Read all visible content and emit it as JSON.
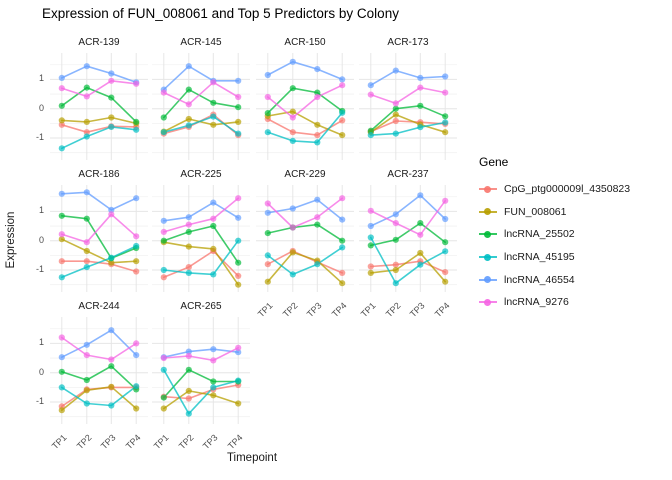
{
  "title": "Expression of FUN_008061 and Top 5 Predictors by Colony",
  "axes": {
    "x_title": "Timepoint",
    "y_title": "Expression",
    "x_ticks": [
      "TP1",
      "TP2",
      "TP3",
      "TP4"
    ],
    "y_ticks": [
      "1",
      "0",
      "-1"
    ]
  },
  "legend": {
    "title": "Gene",
    "items": [
      {
        "label": "CpG_ptg000009l_4350823",
        "color": "#F8766D"
      },
      {
        "label": "FUN_008061",
        "color": "#B79F00"
      },
      {
        "label": "lncRNA_25502",
        "color": "#00BA38"
      },
      {
        "label": "lncRNA_45195",
        "color": "#00BFC4"
      },
      {
        "label": "lncRNA_46554",
        "color": "#619CFF"
      },
      {
        "label": "lncRNA_9276",
        "color": "#F564E3"
      }
    ]
  },
  "chart_data": {
    "type": "line",
    "facet_by": "Colony",
    "x": [
      "TP1",
      "TP2",
      "TP3",
      "TP4"
    ],
    "ylim": [
      -1.75,
      1.9
    ],
    "y_major_gridlines": [
      1,
      0,
      -1
    ],
    "y_minor_gridlines": [
      1.5,
      0.5,
      -0.5,
      -1.5
    ],
    "genes": [
      {
        "name": "CpG_ptg000009l_4350823",
        "color": "#F8766D"
      },
      {
        "name": "FUN_008061",
        "color": "#B79F00"
      },
      {
        "name": "lncRNA_25502",
        "color": "#00BA38"
      },
      {
        "name": "lncRNA_45195",
        "color": "#00BFC4"
      },
      {
        "name": "lncRNA_46554",
        "color": "#619CFF"
      },
      {
        "name": "lncRNA_9276",
        "color": "#F564E3"
      }
    ],
    "facets": [
      {
        "name": "ACR-139",
        "series": [
          {
            "gene": "CpG_ptg000009l_4350823",
            "values": [
              -0.55,
              -0.8,
              -0.6,
              -0.62
            ]
          },
          {
            "gene": "FUN_008061",
            "values": [
              -0.4,
              -0.45,
              -0.3,
              -0.5
            ]
          },
          {
            "gene": "lncRNA_25502",
            "values": [
              0.1,
              0.72,
              0.38,
              -0.45
            ]
          },
          {
            "gene": "lncRNA_45195",
            "values": [
              -1.35,
              -0.95,
              -0.62,
              -0.72
            ]
          },
          {
            "gene": "lncRNA_46554",
            "values": [
              1.05,
              1.45,
              1.2,
              0.9
            ]
          },
          {
            "gene": "lncRNA_9276",
            "values": [
              0.7,
              0.42,
              0.95,
              0.85
            ]
          }
        ]
      },
      {
        "name": "ACR-145",
        "series": [
          {
            "gene": "CpG_ptg000009l_4350823",
            "values": [
              -0.85,
              -0.62,
              -0.2,
              -0.9
            ]
          },
          {
            "gene": "FUN_008061",
            "values": [
              -0.78,
              -0.35,
              -0.55,
              -0.45
            ]
          },
          {
            "gene": "lncRNA_25502",
            "values": [
              -0.3,
              0.65,
              0.2,
              0.05
            ]
          },
          {
            "gene": "lncRNA_45195",
            "values": [
              -0.8,
              -0.57,
              -0.27,
              -0.85
            ]
          },
          {
            "gene": "lncRNA_46554",
            "values": [
              0.65,
              1.45,
              0.95,
              0.95
            ]
          },
          {
            "gene": "lncRNA_9276",
            "values": [
              0.55,
              0.15,
              0.9,
              0.4
            ]
          }
        ]
      },
      {
        "name": "ACR-150",
        "series": [
          {
            "gene": "CpG_ptg000009l_4350823",
            "values": [
              -0.35,
              -0.8,
              -0.9,
              -0.4
            ]
          },
          {
            "gene": "FUN_008061",
            "values": [
              -0.25,
              -0.1,
              -0.55,
              -0.9
            ]
          },
          {
            "gene": "lncRNA_25502",
            "values": [
              -0.15,
              0.7,
              0.55,
              -0.08
            ]
          },
          {
            "gene": "lncRNA_45195",
            "values": [
              -0.8,
              -1.1,
              -1.15,
              -0.14
            ]
          },
          {
            "gene": "lncRNA_46554",
            "values": [
              1.15,
              1.6,
              1.35,
              1.0
            ]
          },
          {
            "gene": "lncRNA_9276",
            "values": [
              0.4,
              -0.3,
              0.4,
              0.8
            ]
          }
        ]
      },
      {
        "name": "ACR-173",
        "series": [
          {
            "gene": "CpG_ptg000009l_4350823",
            "values": [
              -0.78,
              -0.42,
              -0.46,
              -0.52
            ]
          },
          {
            "gene": "FUN_008061",
            "values": [
              -0.8,
              -0.2,
              -0.54,
              -0.8
            ]
          },
          {
            "gene": "lncRNA_25502",
            "values": [
              -0.75,
              0.0,
              0.1,
              -0.26
            ]
          },
          {
            "gene": "lncRNA_45195",
            "values": [
              -0.9,
              -0.85,
              -0.63,
              -0.47
            ]
          },
          {
            "gene": "lncRNA_46554",
            "values": [
              0.8,
              1.3,
              1.05,
              1.1
            ]
          },
          {
            "gene": "lncRNA_9276",
            "values": [
              0.48,
              0.18,
              0.72,
              0.55
            ]
          }
        ]
      },
      {
        "name": "ACR-186",
        "series": [
          {
            "gene": "CpG_ptg000009l_4350823",
            "values": [
              -0.7,
              -0.7,
              -0.8,
              -1.05
            ]
          },
          {
            "gene": "FUN_008061",
            "values": [
              0.05,
              -0.35,
              -0.75,
              -0.7
            ]
          },
          {
            "gene": "lncRNA_25502",
            "values": [
              0.85,
              0.75,
              -0.6,
              -0.25
            ]
          },
          {
            "gene": "lncRNA_45195",
            "values": [
              -1.25,
              -0.9,
              -0.58,
              -0.18
            ]
          },
          {
            "gene": "lncRNA_46554",
            "values": [
              1.6,
              1.65,
              1.05,
              1.45
            ]
          },
          {
            "gene": "lncRNA_9276",
            "values": [
              0.22,
              -0.05,
              0.9,
              0.15
            ]
          }
        ]
      },
      {
        "name": "ACR-225",
        "series": [
          {
            "gene": "CpG_ptg000009l_4350823",
            "values": [
              -1.25,
              -0.9,
              -0.35,
              -1.2
            ]
          },
          {
            "gene": "FUN_008061",
            "values": [
              -0.05,
              -0.2,
              -0.28,
              -1.5
            ]
          },
          {
            "gene": "lncRNA_25502",
            "values": [
              0.0,
              0.3,
              0.5,
              -0.75
            ]
          },
          {
            "gene": "lncRNA_45195",
            "values": [
              -1.0,
              -1.1,
              -1.15,
              0.0
            ]
          },
          {
            "gene": "lncRNA_46554",
            "values": [
              0.68,
              0.8,
              1.3,
              0.78
            ]
          },
          {
            "gene": "lncRNA_9276",
            "values": [
              0.3,
              0.55,
              0.75,
              1.45
            ]
          }
        ]
      },
      {
        "name": "ACR-229",
        "series": [
          {
            "gene": "CpG_ptg000009l_4350823",
            "values": [
              -0.8,
              -0.35,
              -0.73,
              -1.1
            ]
          },
          {
            "gene": "FUN_008061",
            "values": [
              -1.4,
              -0.4,
              -0.68,
              -1.45
            ]
          },
          {
            "gene": "lncRNA_25502",
            "values": [
              0.26,
              0.45,
              0.55,
              0.0
            ]
          },
          {
            "gene": "lncRNA_45195",
            "values": [
              -0.5,
              -1.15,
              -0.8,
              -0.23
            ]
          },
          {
            "gene": "lncRNA_46554",
            "values": [
              0.95,
              1.1,
              1.4,
              0.72
            ]
          },
          {
            "gene": "lncRNA_9276",
            "values": [
              1.27,
              0.45,
              0.8,
              1.45
            ]
          }
        ]
      },
      {
        "name": "ACR-237",
        "series": [
          {
            "gene": "CpG_ptg000009l_4350823",
            "values": [
              -0.88,
              -0.82,
              -0.7,
              -1.07
            ]
          },
          {
            "gene": "FUN_008061",
            "values": [
              -1.1,
              -1.0,
              -0.42,
              -1.4
            ]
          },
          {
            "gene": "lncRNA_25502",
            "values": [
              -0.16,
              0.03,
              0.6,
              -0.05
            ]
          },
          {
            "gene": "lncRNA_45195",
            "values": [
              0.11,
              -1.45,
              -0.82,
              -0.36
            ]
          },
          {
            "gene": "lncRNA_46554",
            "values": [
              0.5,
              0.9,
              1.55,
              0.74
            ]
          },
          {
            "gene": "lncRNA_9276",
            "values": [
              1.02,
              0.6,
              0.2,
              1.36
            ]
          }
        ]
      },
      {
        "name": "ACR-244",
        "series": [
          {
            "gene": "CpG_ptg000009l_4350823",
            "values": [
              -1.15,
              -0.57,
              -0.5,
              -0.5
            ]
          },
          {
            "gene": "FUN_008061",
            "values": [
              -1.28,
              -0.6,
              -0.48,
              -1.22
            ]
          },
          {
            "gene": "lncRNA_25502",
            "values": [
              0.03,
              -0.25,
              0.22,
              -0.57
            ]
          },
          {
            "gene": "lncRNA_45195",
            "values": [
              -0.5,
              -1.05,
              -1.12,
              -0.46
            ]
          },
          {
            "gene": "lncRNA_46554",
            "values": [
              0.53,
              0.95,
              1.45,
              0.6
            ]
          },
          {
            "gene": "lncRNA_9276",
            "values": [
              1.2,
              0.6,
              0.45,
              1.0
            ]
          }
        ]
      },
      {
        "name": "ACR-265",
        "series": [
          {
            "gene": "CpG_ptg000009l_4350823",
            "values": [
              -0.82,
              -0.88,
              -0.57,
              -0.42
            ]
          },
          {
            "gene": "FUN_008061",
            "values": [
              -1.22,
              -0.62,
              -0.77,
              -1.05
            ]
          },
          {
            "gene": "lncRNA_25502",
            "values": [
              -0.85,
              0.1,
              -0.3,
              -0.3
            ]
          },
          {
            "gene": "lncRNA_45195",
            "values": [
              0.1,
              -1.4,
              -0.5,
              -0.27
            ]
          },
          {
            "gene": "lncRNA_46554",
            "values": [
              0.53,
              0.72,
              0.8,
              0.7
            ]
          },
          {
            "gene": "lncRNA_9276",
            "values": [
              0.5,
              0.57,
              0.42,
              0.85
            ]
          }
        ]
      }
    ],
    "grid_major_color": "#e6e6e6",
    "grid_minor_color": "#f2f2f2"
  }
}
